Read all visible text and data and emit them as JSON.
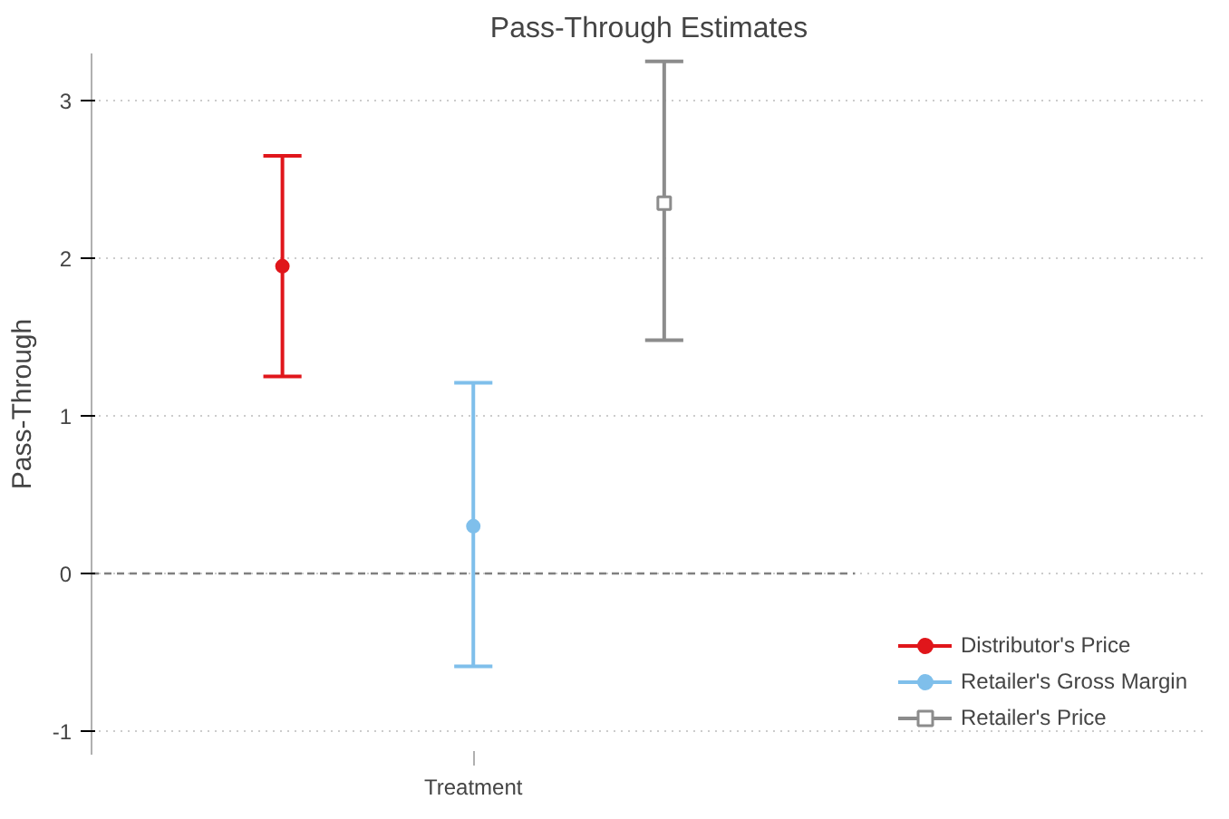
{
  "chart_data": {
    "type": "scatter",
    "title": "Pass-Through Estimates",
    "ylabel": "Pass-Through",
    "categories": [
      "Treatment"
    ],
    "ylim": [
      -1.15,
      3.3
    ],
    "yticks": [
      -1,
      0,
      1,
      2,
      3
    ],
    "series": [
      {
        "name": "Distributor's Price",
        "color": "#e0161b",
        "values": [
          1.95
        ],
        "errors": [
          [
            1.25,
            2.65
          ]
        ],
        "marker": "circle"
      },
      {
        "name": "Retailer's Gross Margin",
        "color": "#7fbfeb",
        "values": [
          0.3
        ],
        "errors": [
          [
            -0.59,
            1.21
          ]
        ],
        "marker": "circle"
      },
      {
        "name": "Retailer's Price",
        "color": "#8c8c8c",
        "values": [
          2.35
        ],
        "errors": [
          [
            1.48,
            3.25
          ]
        ],
        "marker": "square"
      }
    ],
    "ref_lines": [
      {
        "axis": "y",
        "value": 0,
        "color": "#808080",
        "line_style": "dashed"
      }
    ],
    "grid": "y",
    "legend": "bottom right"
  }
}
